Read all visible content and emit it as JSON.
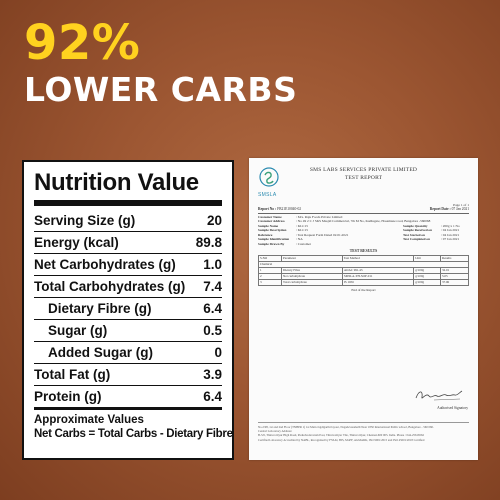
{
  "headline": {
    "percent": "92%",
    "text": "LOWER CARBS"
  },
  "nutrition": {
    "title": "Nutrition Value",
    "rows": [
      {
        "label": "Serving Size (g)",
        "value": "20"
      },
      {
        "label": "Energy (kcal)",
        "value": "89.8"
      },
      {
        "label": "Net Carbohydrates (g)",
        "value": "1.0"
      },
      {
        "label": "Total Carbohydrates (g)",
        "value": "7.4"
      },
      {
        "label": "Dietary Fibre (g)",
        "value": "6.4"
      },
      {
        "label": "Sugar (g)",
        "value": "0.5"
      },
      {
        "label": "Added Sugar (g)",
        "value": "0"
      },
      {
        "label": "Total Fat (g)",
        "value": "3.9"
      },
      {
        "label": "Protein (g)",
        "value": "6.4"
      }
    ],
    "note": "Approximate Values",
    "formula": "Net Carbs = Total Carbs - Dietary Fibre"
  },
  "report": {
    "logo_text": "SMSLA",
    "company": "SMS LABS SERVICES PRIVATE LIMITED",
    "doc_title": "TEST REPORT",
    "page": "Page 1 of 1",
    "report_no_label": "Report No :",
    "report_no": "FB21E10040-02",
    "report_date_label": "Report Date :",
    "report_date": "07 Jan 2021",
    "customer_name_label": "Customer Name",
    "customer_name": ": M/s. Raju Foods Private Limited",
    "customer_address_label": "Customer Address",
    "customer_address": ": No 49 2 C J SKS Masjid Commercial, 7th M No, Kudlugate, Hosamane road, Bangalore -560068",
    "sample_name_label": "Sample Name",
    "sample_name": ": KLC15",
    "sample_desc_label": "Sample Description",
    "sample_desc": ": KLC15",
    "reference_label": "Reference",
    "reference": ": Test Request Form Dated 02.01.2021",
    "sample_id_label": "Sample Identification",
    "sample_id": ": NA",
    "drawn_by_label": "Sample Drawn By",
    "drawn_by": ": Customer",
    "qty_label": "Sample Quantity",
    "qty": ": 200g x 1 No",
    "received_label": "Sample Received on",
    "received": ": 04 Jan 2021",
    "started_label": "Test Started on",
    "started": ": 04 Jan 2021",
    "completed_label": "Test Completed on",
    "completed": ": 07 Jan 2021",
    "results_title": "TEST RESULTS",
    "table_head": [
      "S.NO",
      "Parameter",
      "Test Method",
      "Unit",
      "Results"
    ],
    "section": "Chemical",
    "table_rows": [
      [
        "1",
        "Dietary Fibre",
        "AOAC 991.43",
        "g/100g",
        "32.01"
      ],
      [
        "2",
        "Net carbohydrate",
        "SMSLA-TH-SOP-011",
        "g/100g",
        "5.05"
      ],
      [
        "3",
        "Total carbohydrate",
        "IS 1656",
        "g/100g",
        "37.06"
      ]
    ],
    "end_text": "End of the Report",
    "signature_label": "Authorised Signatory",
    "footer_1": "No.2/98, 1st and 2nd Floor (TNHPR 1) 1st Main Jagdigarthi layout, Nagadevanahalli Near 1850 International Public school, Bangalore - 560 060.",
    "footer_2": "Central Laboratory Address:",
    "footer_3": "B-5/6, Thiruvottiyur High Road, Puduchodavaram Post, Thiruvottiyur Vile, Thiruvottiyur, Chennai-600 005. India. Phone : 044-25616562",
    "footer_4": "Certified Laboratory Accredited by NABL, Recognized by FSSAI, BIS, MoEF, AGMARK, ISO 9001:2015 and ISO 45001:2018 Certified"
  }
}
